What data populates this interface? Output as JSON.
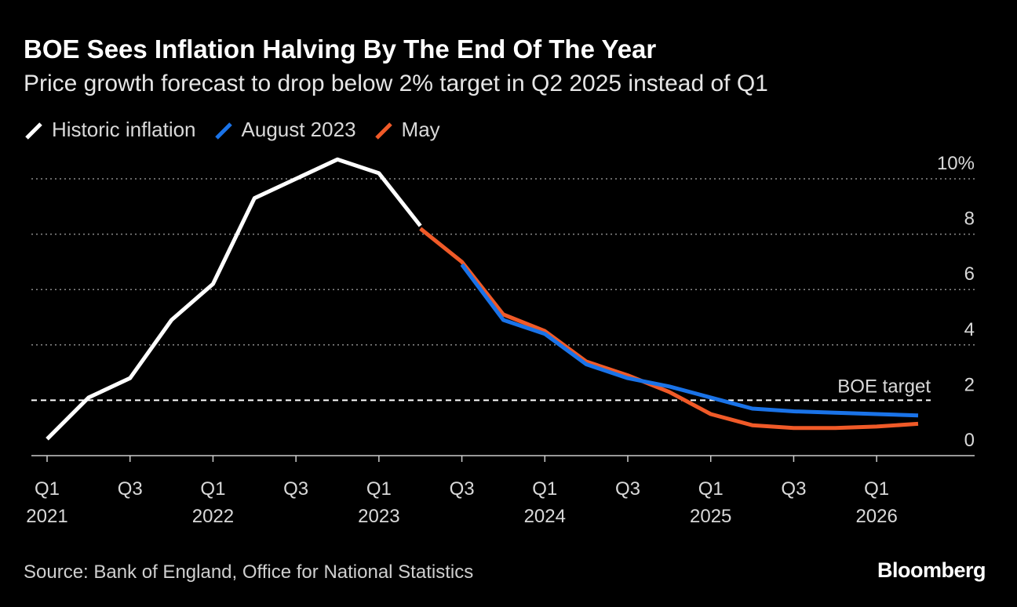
{
  "header": {
    "title": "BOE Sees Inflation Halving By The End Of The Year",
    "subtitle": "Price growth forecast to drop below 2% target in Q2 2025 instead of Q1"
  },
  "footer": {
    "source": "Source: Bank of England, Office for National Statistics",
    "logo": "Bloomberg"
  },
  "colors": {
    "background": "#000000",
    "historic": "#ffffff",
    "august": "#1a73e8",
    "may": "#f05a28",
    "grid": "#8a8a8a",
    "axis": "#cccccc"
  },
  "chart_data": {
    "type": "line",
    "title": "BOE Sees Inflation Halving By The End Of The Year",
    "subtitle": "Price growth forecast to drop below 2% target in Q2 2025 instead of Q1",
    "ylim": [
      0,
      10
    ],
    "y_ticks": [
      {
        "value": 0,
        "label": "0"
      },
      {
        "value": 2,
        "label": "2"
      },
      {
        "value": 4,
        "label": "4"
      },
      {
        "value": 6,
        "label": "6"
      },
      {
        "value": 8,
        "label": "8"
      },
      {
        "value": 10,
        "label": "10%"
      }
    ],
    "x_ticks": [
      {
        "q": 0,
        "label": "Q1",
        "year": "2021"
      },
      {
        "q": 2,
        "label": "Q3",
        "year": ""
      },
      {
        "q": 4,
        "label": "Q1",
        "year": "2022"
      },
      {
        "q": 6,
        "label": "Q3",
        "year": ""
      },
      {
        "q": 8,
        "label": "Q1",
        "year": "2023"
      },
      {
        "q": 10,
        "label": "Q3",
        "year": ""
      },
      {
        "q": 12,
        "label": "Q1",
        "year": "2024"
      },
      {
        "q": 14,
        "label": "Q3",
        "year": ""
      },
      {
        "q": 16,
        "label": "Q1",
        "year": "2025"
      },
      {
        "q": 18,
        "label": "Q3",
        "year": ""
      },
      {
        "q": 20,
        "label": "Q1",
        "year": "2026"
      }
    ],
    "x_range": [
      0,
      22.3
    ],
    "reference_line": {
      "value": 2,
      "label": "BOE target"
    },
    "series": [
      {
        "name": "Historic inflation",
        "color": "#ffffff",
        "points": [
          [
            0,
            0.6
          ],
          [
            1,
            2.1
          ],
          [
            2,
            2.8
          ],
          [
            3,
            4.9
          ],
          [
            4,
            6.2
          ],
          [
            5,
            9.3
          ],
          [
            6,
            10.0
          ],
          [
            7,
            10.7
          ],
          [
            8,
            10.2
          ],
          [
            9,
            8.3
          ]
        ]
      },
      {
        "name": "August 2023",
        "color": "#1a73e8",
        "points": [
          [
            10,
            6.9
          ],
          [
            11,
            4.9
          ],
          [
            12,
            4.4
          ],
          [
            13,
            3.3
          ],
          [
            14,
            2.8
          ],
          [
            15,
            2.5
          ],
          [
            16,
            2.1
          ],
          [
            17,
            1.7
          ],
          [
            18,
            1.6
          ],
          [
            19,
            1.55
          ],
          [
            20,
            1.5
          ],
          [
            21,
            1.45
          ]
        ]
      },
      {
        "name": "May",
        "color": "#f05a28",
        "points": [
          [
            9,
            8.2
          ],
          [
            10,
            7.0
          ],
          [
            11,
            5.1
          ],
          [
            12,
            4.5
          ],
          [
            13,
            3.4
          ],
          [
            14,
            2.9
          ],
          [
            15,
            2.3
          ],
          [
            16,
            1.5
          ],
          [
            17,
            1.1
          ],
          [
            18,
            1.0
          ],
          [
            19,
            1.0
          ],
          [
            20,
            1.05
          ],
          [
            21,
            1.15
          ]
        ]
      }
    ]
  }
}
